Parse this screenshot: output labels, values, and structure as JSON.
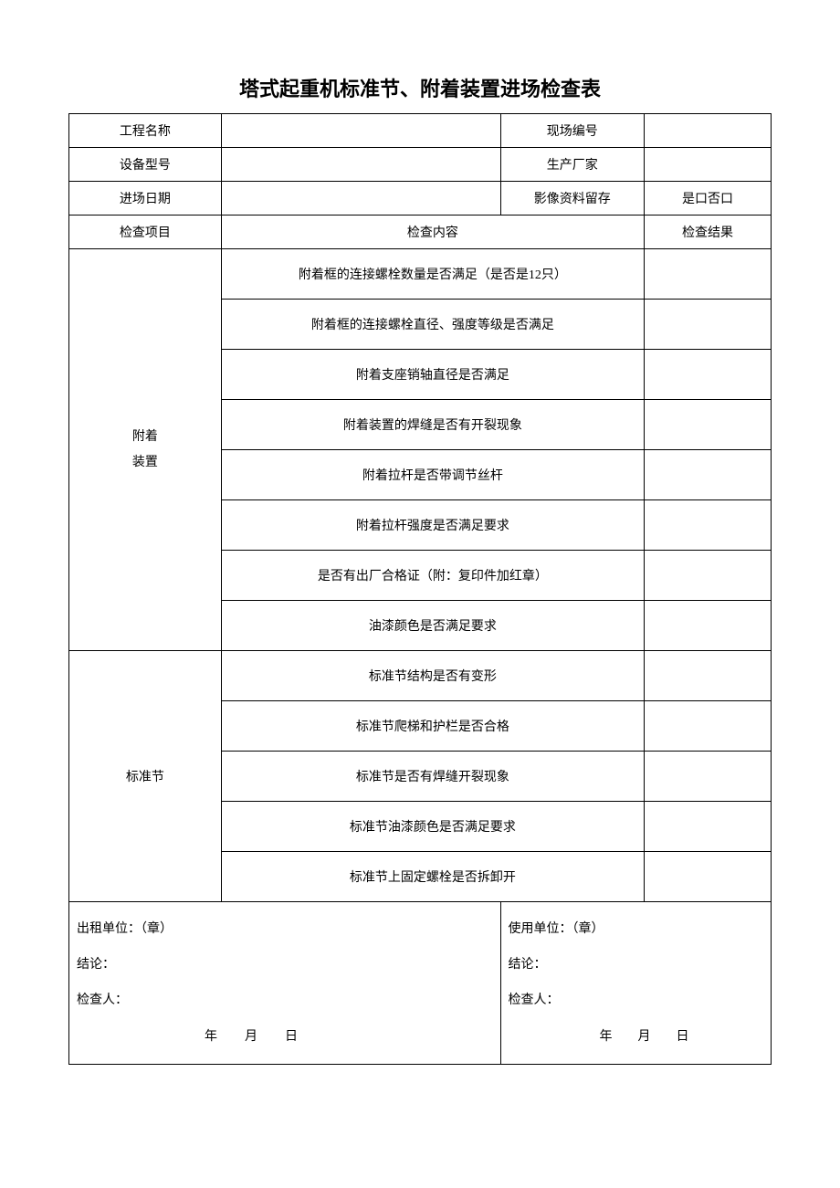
{
  "title": "塔式起重机标准节、附着装置进场检查表",
  "headers": {
    "project_name": "工程名称",
    "site_number": "现场编号",
    "equipment_model": "设备型号",
    "manufacturer": "生产厂家",
    "entry_date": "进场日期",
    "video_retention": "影像资料留存",
    "yes_no": "是口否口",
    "check_item": "检查项目",
    "check_content": "检查内容",
    "check_result": "检查结果"
  },
  "sections": {
    "attachment": {
      "label": "附着\n装置",
      "items": [
        "附着框的连接螺栓数量是否满足（是否是12只）",
        "附着框的连接螺栓直径、强度等级是否满足",
        "附着支座销轴直径是否满足",
        "附着装置的焊缝是否有开裂现象",
        "附着拉杆是否带调节丝杆",
        "附着拉杆强度是否满足要求",
        "是否有出厂合格证（附：复印件加红章）",
        "油漆颜色是否满足要求"
      ]
    },
    "standard": {
      "label": "标准节",
      "items": [
        "标准节结构是否有变形",
        "标准节爬梯和护栏是否合格",
        "标准节是否有焊缝开裂现象",
        "标准节油漆颜色是否满足要求",
        "标准节上固定螺栓是否拆卸开"
      ]
    }
  },
  "signature": {
    "left": {
      "unit": "出租单位：（章）",
      "conclusion": "结论：",
      "inspector": "检查人：",
      "date": "年 月 日"
    },
    "right": {
      "unit": "使用单位：（章）",
      "conclusion": "结论：",
      "inspector": "检查人：",
      "date": "年 月 日"
    }
  },
  "colors": {
    "border": "#000000",
    "background": "#ffffff",
    "text": "#000000"
  }
}
